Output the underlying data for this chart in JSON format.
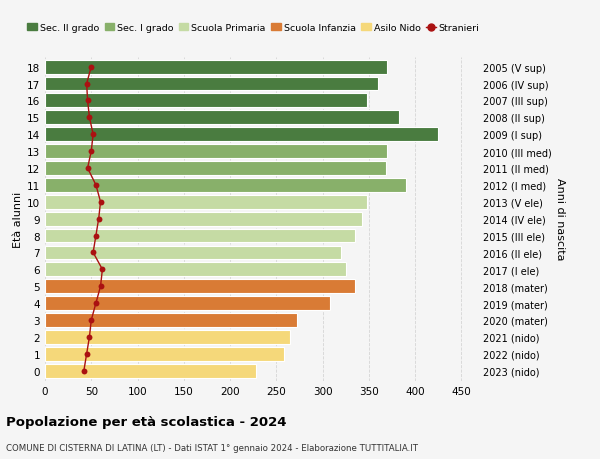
{
  "ages": [
    18,
    17,
    16,
    15,
    14,
    13,
    12,
    11,
    10,
    9,
    8,
    7,
    6,
    5,
    4,
    3,
    2,
    1,
    0
  ],
  "right_labels": [
    "2005 (V sup)",
    "2006 (IV sup)",
    "2007 (III sup)",
    "2008 (II sup)",
    "2009 (I sup)",
    "2010 (III med)",
    "2011 (II med)",
    "2012 (I med)",
    "2013 (V ele)",
    "2014 (IV ele)",
    "2015 (III ele)",
    "2016 (II ele)",
    "2017 (I ele)",
    "2018 (mater)",
    "2019 (mater)",
    "2020 (mater)",
    "2021 (nido)",
    "2022 (nido)",
    "2023 (nido)"
  ],
  "bar_values": [
    370,
    360,
    348,
    383,
    425,
    370,
    368,
    390,
    348,
    342,
    335,
    320,
    325,
    335,
    308,
    272,
    265,
    258,
    228
  ],
  "stranieri": [
    50,
    45,
    46,
    48,
    52,
    50,
    46,
    55,
    60,
    58,
    55,
    52,
    62,
    60,
    55,
    50,
    48,
    45,
    42
  ],
  "bar_colors": {
    "sec2": "#4a7c40",
    "sec1": "#88b06a",
    "primaria": "#c5dba4",
    "infanzia": "#d97b35",
    "nido": "#f5d87a"
  },
  "category_ranges": {
    "sec2": [
      14,
      18
    ],
    "sec1": [
      11,
      13
    ],
    "primaria": [
      6,
      10
    ],
    "infanzia": [
      3,
      5
    ],
    "nido": [
      0,
      2
    ]
  },
  "legend_labels": [
    "Sec. II grado",
    "Sec. I grado",
    "Scuola Primaria",
    "Scuola Infanzia",
    "Asilo Nido",
    "Stranieri"
  ],
  "legend_colors": [
    "#4a7c40",
    "#88b06a",
    "#c5dba4",
    "#d97b35",
    "#f5d87a",
    "#aa1111"
  ],
  "ylabel_label": "Età alunni",
  "right_ylabel": "Anni di nascita",
  "title": "Popolazione per età scolastica - 2024",
  "subtitle": "COMUNE DI CISTERNA DI LATINA (LT) - Dati ISTAT 1° gennaio 2024 - Elaborazione TUTTITALIA.IT",
  "xlim": [
    0,
    470
  ],
  "xticks": [
    0,
    50,
    100,
    150,
    200,
    250,
    300,
    350,
    400,
    450
  ],
  "background_color": "#f5f5f5",
  "grid_color": "#d5d5d5"
}
